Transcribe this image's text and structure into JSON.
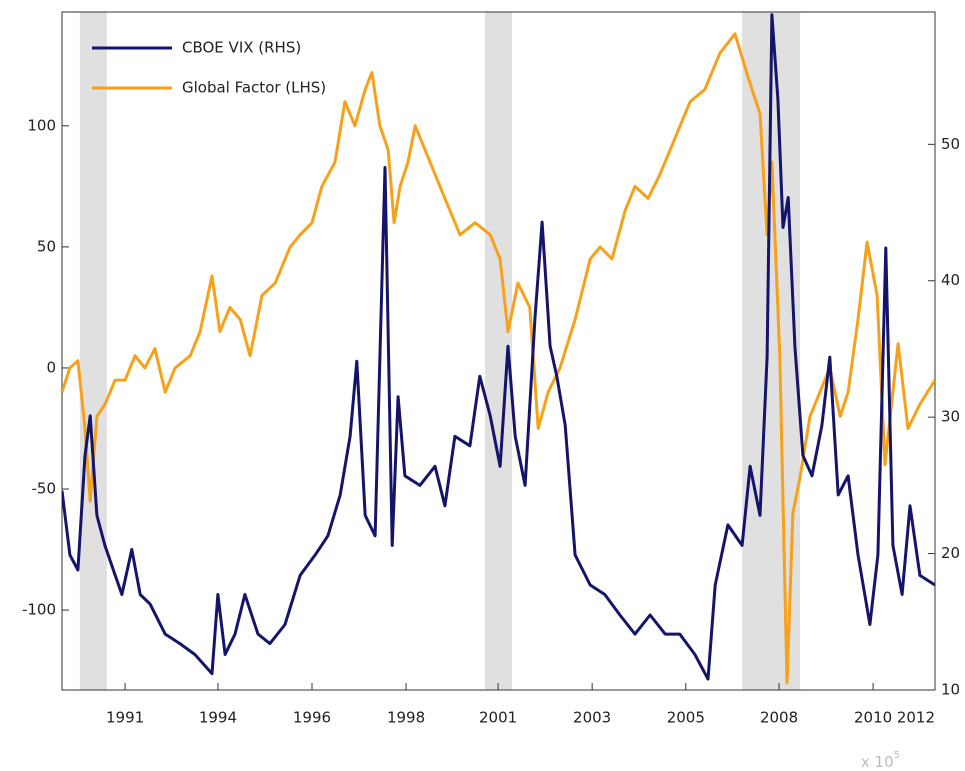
{
  "chart_data": {
    "type": "line",
    "xlim": [
      1990,
      2012
    ],
    "xticks": [
      {
        "value": 1991.59,
        "label": "1991"
      },
      {
        "value": 1993.93,
        "label": "1994"
      },
      {
        "value": 1996.3,
        "label": "1996"
      },
      {
        "value": 1998.67,
        "label": "1998"
      },
      {
        "value": 2000.99,
        "label": "2001"
      },
      {
        "value": 2003.36,
        "label": "2003"
      },
      {
        "value": 2005.72,
        "label": "2005"
      },
      {
        "value": 2008.07,
        "label": "2008"
      },
      {
        "value": 2010.44,
        "label": "2010"
      },
      {
        "value": 2012,
        "label": "2012"
      }
    ],
    "x_exponent_base": "x 10",
    "x_exponent_power": "5",
    "ylim": [
      -133,
      147
    ],
    "yticks": [
      -100,
      -50,
      0,
      50,
      100
    ],
    "y2lim": [
      10,
      59.7
    ],
    "y2ticks": [
      10,
      20,
      30,
      40,
      50
    ],
    "recession_shading": [
      [
        1990.45,
        1991.13
      ],
      [
        2000.66,
        2001.34
      ],
      [
        2007.14,
        2008.6
      ]
    ],
    "shading_color": "#e0e0e0",
    "legend": "upper left",
    "series": [
      {
        "name": "CBOE VIX (RHS)",
        "color": "#14146b",
        "axis": "y2",
        "x": [
          1990.0,
          1990.2,
          1990.4,
          1990.58,
          1990.71,
          1990.88,
          1991.08,
          1991.34,
          1991.51,
          1991.76,
          1991.97,
          1992.22,
          1992.6,
          1992.97,
          1993.35,
          1993.78,
          1993.93,
          1994.11,
          1994.36,
          1994.61,
          1994.94,
          1995.24,
          1995.62,
          1996.0,
          1996.38,
          1996.7,
          1997.01,
          1997.26,
          1997.43,
          1997.64,
          1997.89,
          1998.14,
          1998.32,
          1998.47,
          1998.64,
          1999.02,
          1999.4,
          1999.65,
          1999.9,
          2000.28,
          2000.53,
          2000.79,
          2001.04,
          2001.24,
          2001.42,
          2001.67,
          2001.92,
          2002.1,
          2002.3,
          2002.47,
          2002.68,
          2002.93,
          2003.31,
          2003.68,
          2004.06,
          2004.44,
          2004.82,
          2005.2,
          2005.57,
          2005.95,
          2006.28,
          2006.46,
          2006.78,
          2007.14,
          2007.34,
          2007.59,
          2007.77,
          2007.89,
          2008.04,
          2008.17,
          2008.3,
          2008.47,
          2008.67,
          2008.9,
          2009.15,
          2009.35,
          2009.56,
          2009.81,
          2010.06,
          2010.36,
          2010.56,
          2010.76,
          2010.94,
          2011.17,
          2011.37,
          2011.62,
          2012.0
        ],
        "values": [
          24.6,
          19.9,
          18.8,
          27.2,
          30.1,
          22.8,
          20.6,
          18.4,
          17,
          20.3,
          17,
          16.3,
          14.1,
          13.4,
          12.6,
          11.2,
          17,
          12.6,
          14.1,
          17,
          14.1,
          13.4,
          14.8,
          18.4,
          19.9,
          21.3,
          24.3,
          28.6,
          34.1,
          22.8,
          21.3,
          48.3,
          20.6,
          31.5,
          25.7,
          25,
          26.4,
          23.5,
          28.6,
          27.9,
          33,
          30.1,
          26.4,
          35.2,
          28.6,
          25,
          37.3,
          44.3,
          35.2,
          33,
          29.4,
          19.9,
          17.7,
          17,
          15.5,
          14.1,
          15.5,
          14.1,
          14.1,
          12.6,
          10.8,
          17.7,
          22.1,
          20.6,
          26.4,
          22.8,
          34.4,
          59.5,
          53.3,
          43.9,
          46.1,
          35.2,
          27.2,
          25.7,
          29.4,
          34.4,
          24.3,
          25.7,
          19.9,
          14.8,
          19.9,
          42.4,
          20.6,
          17,
          23.5,
          18.4,
          17.7
        ]
      },
      {
        "name": "Global Factor (LHS)",
        "color": "#f7a11a",
        "x": [
          1990.0,
          1990.2,
          1990.4,
          1990.58,
          1990.71,
          1990.88,
          1991.08,
          1991.34,
          1991.59,
          1991.84,
          1992.09,
          1992.34,
          1992.6,
          1992.85,
          1993.23,
          1993.48,
          1993.78,
          1993.98,
          1994.23,
          1994.49,
          1994.74,
          1995.04,
          1995.37,
          1995.75,
          1996.0,
          1996.3,
          1996.55,
          1996.88,
          1997.13,
          1997.38,
          1997.64,
          1997.81,
          1998.01,
          1998.22,
          1998.37,
          1998.52,
          1998.72,
          1998.9,
          1999.15,
          1999.4,
          1999.65,
          2000.03,
          2000.41,
          2000.79,
          2001.04,
          2001.24,
          2001.49,
          2001.79,
          2002.0,
          2002.25,
          2002.55,
          2002.93,
          2003.31,
          2003.56,
          2003.86,
          2004.19,
          2004.44,
          2004.77,
          2005.07,
          2005.45,
          2005.83,
          2006.2,
          2006.58,
          2006.96,
          2007.29,
          2007.59,
          2007.77,
          2007.89,
          2008.09,
          2008.27,
          2008.42,
          2008.6,
          2008.85,
          2009.1,
          2009.35,
          2009.61,
          2009.81,
          2010.06,
          2010.29,
          2010.54,
          2010.74,
          2011.07,
          2011.32,
          2011.62,
          2012.0
        ],
        "values": [
          -10,
          0,
          3,
          -25,
          -55,
          -20,
          -15,
          -5,
          -5,
          5,
          0,
          8,
          -10,
          0,
          5,
          15,
          38,
          15,
          25,
          20,
          5,
          30,
          35,
          50,
          55,
          60,
          75,
          85,
          110,
          100,
          115,
          122,
          100,
          90,
          60,
          75,
          85,
          100,
          90,
          80,
          70,
          55,
          60,
          55,
          45,
          15,
          35,
          25,
          -25,
          -10,
          0,
          20,
          45,
          50,
          45,
          65,
          75,
          70,
          80,
          95,
          110,
          115,
          130,
          138,
          120,
          105,
          55,
          85,
          5,
          -130,
          -60,
          -45,
          -20,
          -10,
          0,
          -20,
          -10,
          20,
          52,
          30,
          -40,
          10,
          -25,
          -15,
          -5
        ]
      }
    ]
  }
}
